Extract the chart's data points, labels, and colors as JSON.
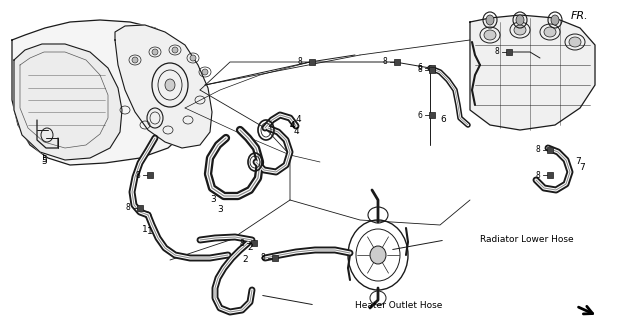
{
  "background_color": "#ffffff",
  "line_color": "#1a1a1a",
  "text_color": "#000000",
  "labels": {
    "heater_outlet_hose": "Heater Outlet Hose",
    "radiator_lower_hose": "Radiator Lower Hose",
    "fr_label": "FR."
  },
  "figsize": [
    6.2,
    3.2
  ],
  "dpi": 100
}
